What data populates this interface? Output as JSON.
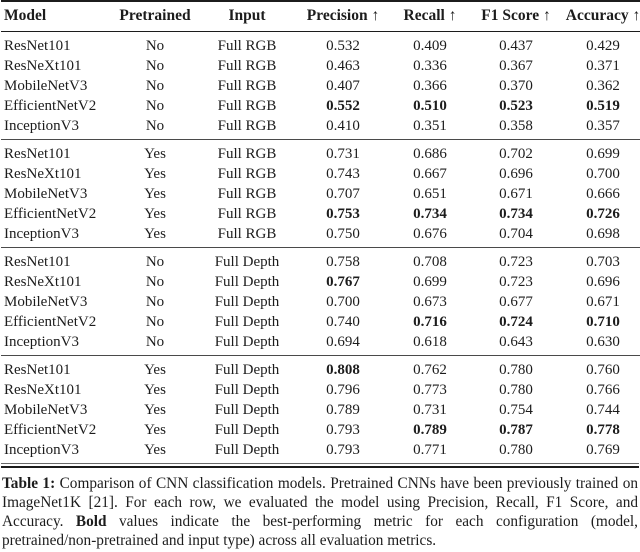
{
  "table": {
    "columns": [
      {
        "key": "model",
        "label": "Model"
      },
      {
        "key": "pretrained",
        "label": "Pretrained"
      },
      {
        "key": "input",
        "label": "Input"
      },
      {
        "key": "precision",
        "label": "Precision ↑"
      },
      {
        "key": "recall",
        "label": "Recall ↑"
      },
      {
        "key": "f1",
        "label": "F1 Score ↑"
      },
      {
        "key": "accuracy",
        "label": "Accuracy ↑"
      }
    ],
    "groups": [
      {
        "rows": [
          {
            "model": "ResNet101",
            "pretrained": "No",
            "input": "Full RGB",
            "precision": "0.532",
            "recall": "0.409",
            "f1": "0.437",
            "accuracy": "0.429",
            "bold": []
          },
          {
            "model": "ResNeXt101",
            "pretrained": "No",
            "input": "Full RGB",
            "precision": "0.463",
            "recall": "0.336",
            "f1": "0.367",
            "accuracy": "0.371",
            "bold": []
          },
          {
            "model": "MobileNetV3",
            "pretrained": "No",
            "input": "Full RGB",
            "precision": "0.407",
            "recall": "0.366",
            "f1": "0.370",
            "accuracy": "0.362",
            "bold": []
          },
          {
            "model": "EfficientNetV2",
            "pretrained": "No",
            "input": "Full RGB",
            "precision": "0.552",
            "recall": "0.510",
            "f1": "0.523",
            "accuracy": "0.519",
            "bold": [
              "precision",
              "recall",
              "f1",
              "accuracy"
            ]
          },
          {
            "model": "InceptionV3",
            "pretrained": "No",
            "input": "Full RGB",
            "precision": "0.410",
            "recall": "0.351",
            "f1": "0.358",
            "accuracy": "0.357",
            "bold": []
          }
        ]
      },
      {
        "rows": [
          {
            "model": "ResNet101",
            "pretrained": "Yes",
            "input": "Full RGB",
            "precision": "0.731",
            "recall": "0.686",
            "f1": "0.702",
            "accuracy": "0.699",
            "bold": []
          },
          {
            "model": "ResNeXt101",
            "pretrained": "Yes",
            "input": "Full RGB",
            "precision": "0.743",
            "recall": "0.667",
            "f1": "0.696",
            "accuracy": "0.700",
            "bold": []
          },
          {
            "model": "MobileNetV3",
            "pretrained": "Yes",
            "input": "Full RGB",
            "precision": "0.707",
            "recall": "0.651",
            "f1": "0.671",
            "accuracy": "0.666",
            "bold": []
          },
          {
            "model": "EfficientNetV2",
            "pretrained": "Yes",
            "input": "Full RGB",
            "precision": "0.753",
            "recall": "0.734",
            "f1": "0.734",
            "accuracy": "0.726",
            "bold": [
              "precision",
              "recall",
              "f1",
              "accuracy"
            ]
          },
          {
            "model": "InceptionV3",
            "pretrained": "Yes",
            "input": "Full RGB",
            "precision": "0.750",
            "recall": "0.676",
            "f1": "0.704",
            "accuracy": "0.698",
            "bold": []
          }
        ]
      },
      {
        "rows": [
          {
            "model": "ResNet101",
            "pretrained": "No",
            "input": "Full Depth",
            "precision": "0.758",
            "recall": "0.708",
            "f1": "0.723",
            "accuracy": "0.703",
            "bold": []
          },
          {
            "model": "ResNeXt101",
            "pretrained": "No",
            "input": "Full Depth",
            "precision": "0.767",
            "recall": "0.699",
            "f1": "0.723",
            "accuracy": "0.696",
            "bold": [
              "precision"
            ]
          },
          {
            "model": "MobileNetV3",
            "pretrained": "No",
            "input": "Full Depth",
            "precision": "0.700",
            "recall": "0.673",
            "f1": "0.677",
            "accuracy": "0.671",
            "bold": []
          },
          {
            "model": "EfficientNetV2",
            "pretrained": "No",
            "input": "Full Depth",
            "precision": "0.740",
            "recall": "0.716",
            "f1": "0.724",
            "accuracy": "0.710",
            "bold": [
              "recall",
              "f1",
              "accuracy"
            ]
          },
          {
            "model": "InceptionV3",
            "pretrained": "No",
            "input": "Full Depth",
            "precision": "0.694",
            "recall": "0.618",
            "f1": "0.643",
            "accuracy": "0.630",
            "bold": []
          }
        ]
      },
      {
        "rows": [
          {
            "model": "ResNet101",
            "pretrained": "Yes",
            "input": "Full Depth",
            "precision": "0.808",
            "recall": "0.762",
            "f1": "0.780",
            "accuracy": "0.760",
            "bold": [
              "precision"
            ]
          },
          {
            "model": "ResNeXt101",
            "pretrained": "Yes",
            "input": "Full Depth",
            "precision": "0.796",
            "recall": "0.773",
            "f1": "0.780",
            "accuracy": "0.766",
            "bold": []
          },
          {
            "model": "MobileNetV3",
            "pretrained": "Yes",
            "input": "Full Depth",
            "precision": "0.789",
            "recall": "0.731",
            "f1": "0.754",
            "accuracy": "0.744",
            "bold": []
          },
          {
            "model": "EfficientNetV2",
            "pretrained": "Yes",
            "input": "Full Depth",
            "precision": "0.793",
            "recall": "0.789",
            "f1": "0.787",
            "accuracy": "0.778",
            "bold": [
              "recall",
              "f1",
              "accuracy"
            ]
          },
          {
            "model": "InceptionV3",
            "pretrained": "Yes",
            "input": "Full Depth",
            "precision": "0.793",
            "recall": "0.771",
            "f1": "0.780",
            "accuracy": "0.769",
            "bold": []
          }
        ]
      }
    ]
  },
  "caption": {
    "segments": [
      {
        "text": "Table 1: ",
        "bold": true
      },
      {
        "text": "Comparison of CNN classification models. Pretrained CNNs have been previously trained on ImageNet1K [21]. For each row, we evaluated the model using Precision, Recall, F1 Score, and Accuracy. ",
        "bold": false
      },
      {
        "text": "Bold",
        "bold": true
      },
      {
        "text": " values indicate the best-performing metric for each configuration (model, pretrained/non-pretrained and input type) across all evaluation metrics.",
        "bold": false
      }
    ]
  }
}
